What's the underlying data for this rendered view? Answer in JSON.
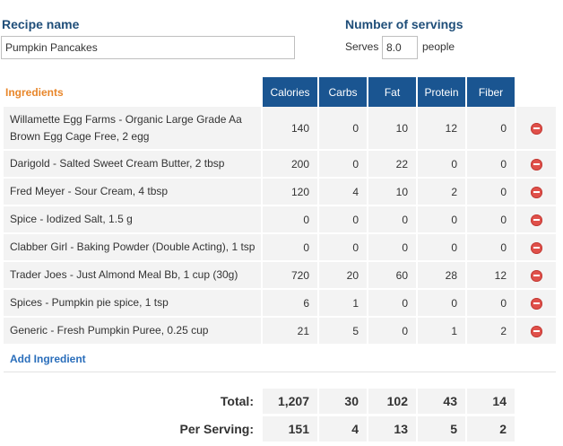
{
  "recipe": {
    "name_label": "Recipe name",
    "name_value": "Pumpkin Pancakes"
  },
  "servings": {
    "label": "Number of servings",
    "prefix": "Serves",
    "value": "8.0",
    "suffix": "people"
  },
  "ingredients_table": {
    "title": "Ingredients",
    "columns": [
      "Calories",
      "Carbs",
      "Fat",
      "Protein",
      "Fiber"
    ],
    "rows": [
      {
        "name": "Willamette Egg Farms - Organic Large Grade Aa Brown Egg Cage Free, 2 egg",
        "values": [
          "140",
          "0",
          "10",
          "12",
          "0"
        ]
      },
      {
        "name": "Darigold - Salted Sweet Cream Butter, 2 tbsp",
        "values": [
          "200",
          "0",
          "22",
          "0",
          "0"
        ]
      },
      {
        "name": "Fred Meyer - Sour Cream, 4 tbsp",
        "values": [
          "120",
          "4",
          "10",
          "2",
          "0"
        ]
      },
      {
        "name": "Spice - Iodized Salt, 1.5 g",
        "values": [
          "0",
          "0",
          "0",
          "0",
          "0"
        ]
      },
      {
        "name": "Clabber Girl - Baking Powder (Double Acting), 1 tsp",
        "values": [
          "0",
          "0",
          "0",
          "0",
          "0"
        ]
      },
      {
        "name": "Trader Joes - Just Almond Meal Bb, 1 cup (30g)",
        "values": [
          "720",
          "20",
          "60",
          "28",
          "12"
        ]
      },
      {
        "name": "Spices - Pumpkin pie spice, 1 tsp",
        "values": [
          "6",
          "1",
          "0",
          "0",
          "0"
        ]
      },
      {
        "name": "Generic - Fresh Pumpkin Puree, 0.25 cup",
        "values": [
          "21",
          "5",
          "0",
          "1",
          "2"
        ]
      }
    ],
    "add_label": "Add Ingredient"
  },
  "totals": {
    "total_label": "Total:",
    "total_values": [
      "1,207",
      "30",
      "102",
      "43",
      "14"
    ],
    "per_serving_label": "Per Serving:",
    "per_serving_values": [
      "151",
      "4",
      "13",
      "5",
      "2"
    ]
  },
  "colors": {
    "header_bg": "#1a5591",
    "label_blue": "#1f4e79",
    "ingredients_orange": "#e8862a",
    "link_blue": "#2a6ebb",
    "delete_red": "#e0504a"
  },
  "icons": {
    "delete": "delete-icon"
  }
}
